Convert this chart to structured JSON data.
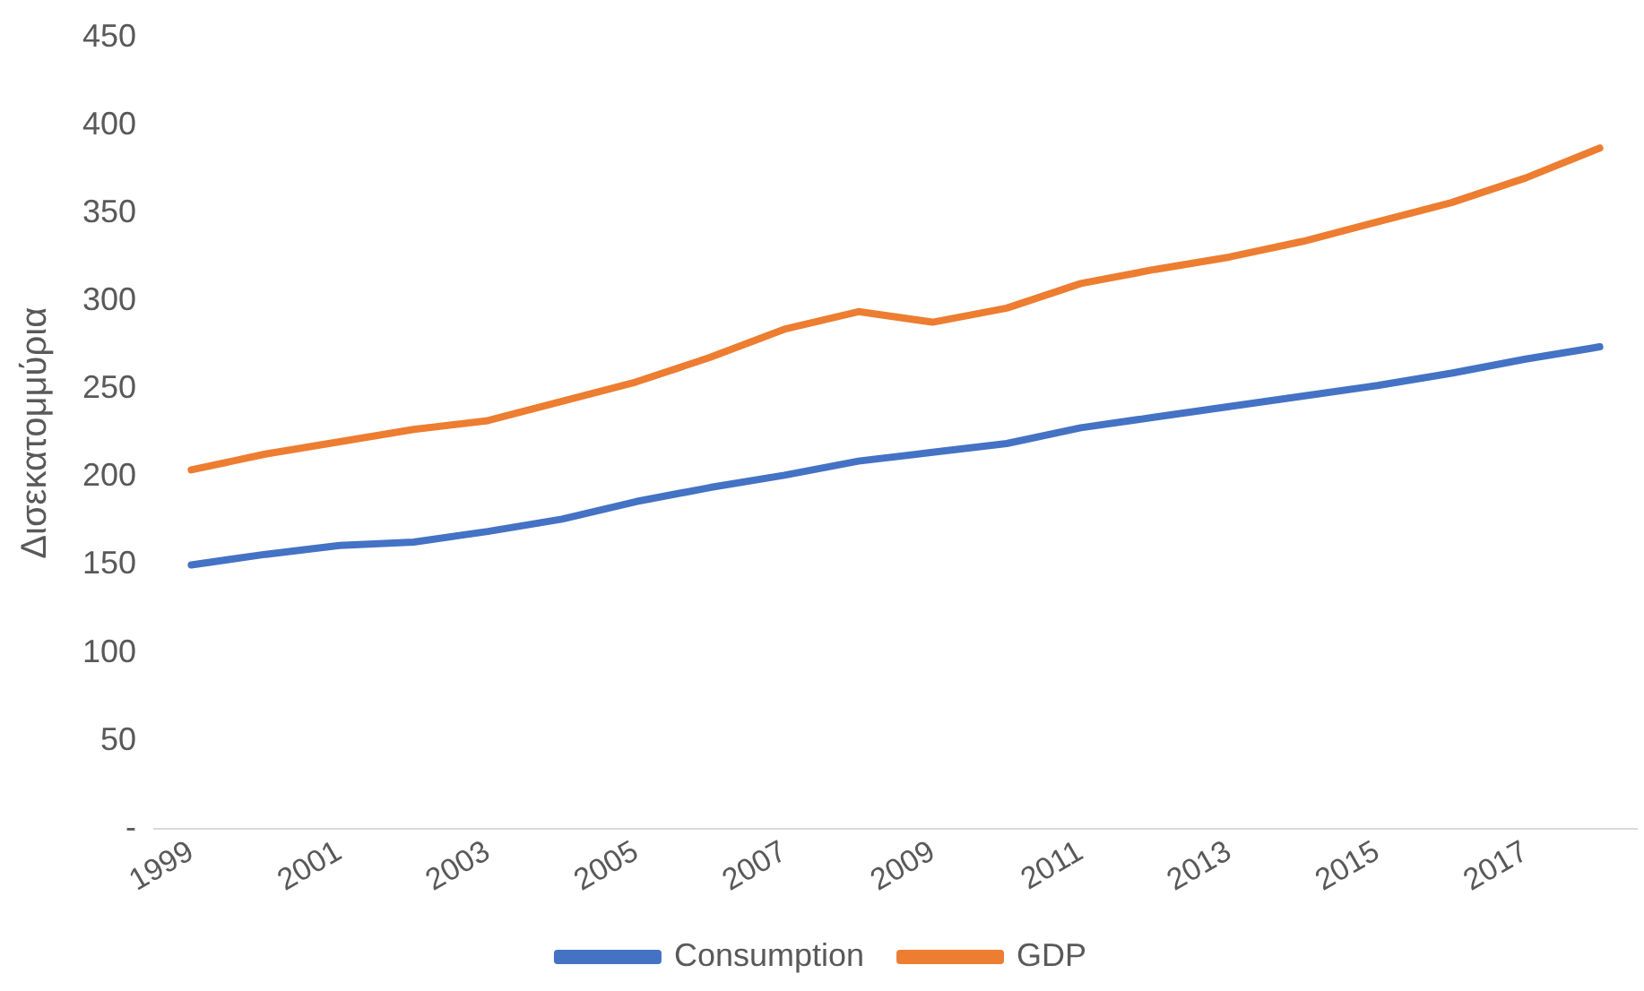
{
  "chart_data": {
    "type": "line",
    "ylabel": "Δισεκατομμύρια",
    "categories": [
      "1999",
      null,
      "2001",
      null,
      "2003",
      null,
      "2005",
      null,
      "2007",
      null,
      "2009",
      null,
      "2011",
      null,
      "2013",
      null,
      "2015",
      null,
      "2017",
      null
    ],
    "series": [
      {
        "name": "Consumption",
        "color": "#4472c4",
        "values": [
          150,
          156,
          161,
          163,
          169,
          176,
          186,
          194,
          201,
          209,
          214,
          219,
          228,
          234,
          240,
          246,
          252,
          259,
          267,
          274
        ]
      },
      {
        "name": "GDP",
        "color": "#ed7d31",
        "values": [
          204,
          213,
          220,
          227,
          232,
          243,
          254,
          268,
          284,
          294,
          288,
          296,
          310,
          318,
          325,
          334,
          345,
          356,
          370,
          387
        ]
      }
    ],
    "ylim": [
      0,
      450
    ],
    "yticks": [
      {
        "value": 0,
        "label": "-"
      },
      50,
      100,
      150,
      200,
      250,
      300,
      350,
      400,
      450
    ],
    "grid": false,
    "legend": "bottom",
    "marker": "none",
    "line_style": "solid"
  }
}
